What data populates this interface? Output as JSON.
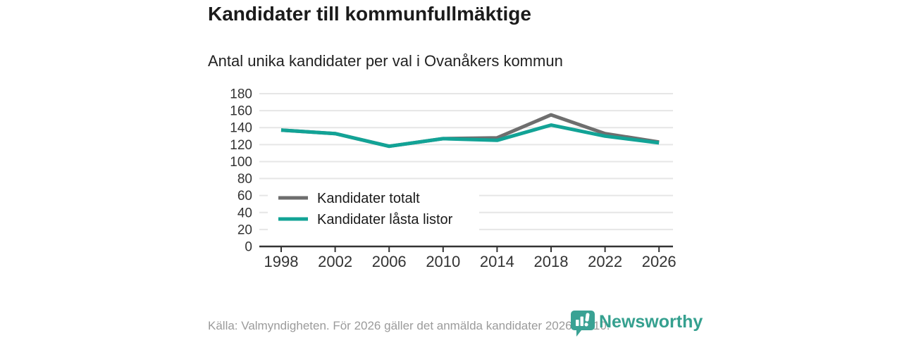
{
  "header": {
    "title": "Kandidater till kommunfullmäktige",
    "subtitle": "Antal unika kandidater per val i Ovanåkers kommun"
  },
  "chart_data": {
    "type": "line",
    "x": [
      "1998",
      "2002",
      "2006",
      "2010",
      "2014",
      "2018",
      "2022",
      "2026"
    ],
    "series": [
      {
        "name": "Kandidater totalt",
        "color": "#6e6e6e",
        "values": [
          137,
          133,
          118,
          127,
          128,
          155,
          133,
          123
        ]
      },
      {
        "name": "Kandidater låsta listor",
        "color": "#12a396",
        "values": [
          137,
          133,
          118,
          127,
          125,
          143,
          130,
          122
        ]
      }
    ],
    "title": "Kandidater till kommunfullmäktige",
    "subtitle": "Antal unika kandidater per val i Ovanåkers kommun",
    "xlabel": "",
    "ylabel": "",
    "ylim": [
      0,
      180
    ],
    "ytick_step": 20,
    "grid": "horizontal-only",
    "legend_position": "inside bottom-left",
    "colors": {
      "grid": "#e6e6e6",
      "axis": "#333333",
      "tick_label": "#333333",
      "legend_text": "#1a1a1a"
    }
  },
  "footer": {
    "source": "Källa: Valmyndigheten. För 2026 gäller det anmälda kandidater 2026-04-10.",
    "brand": "Newsworthy",
    "brand_color": "#35a08f"
  }
}
